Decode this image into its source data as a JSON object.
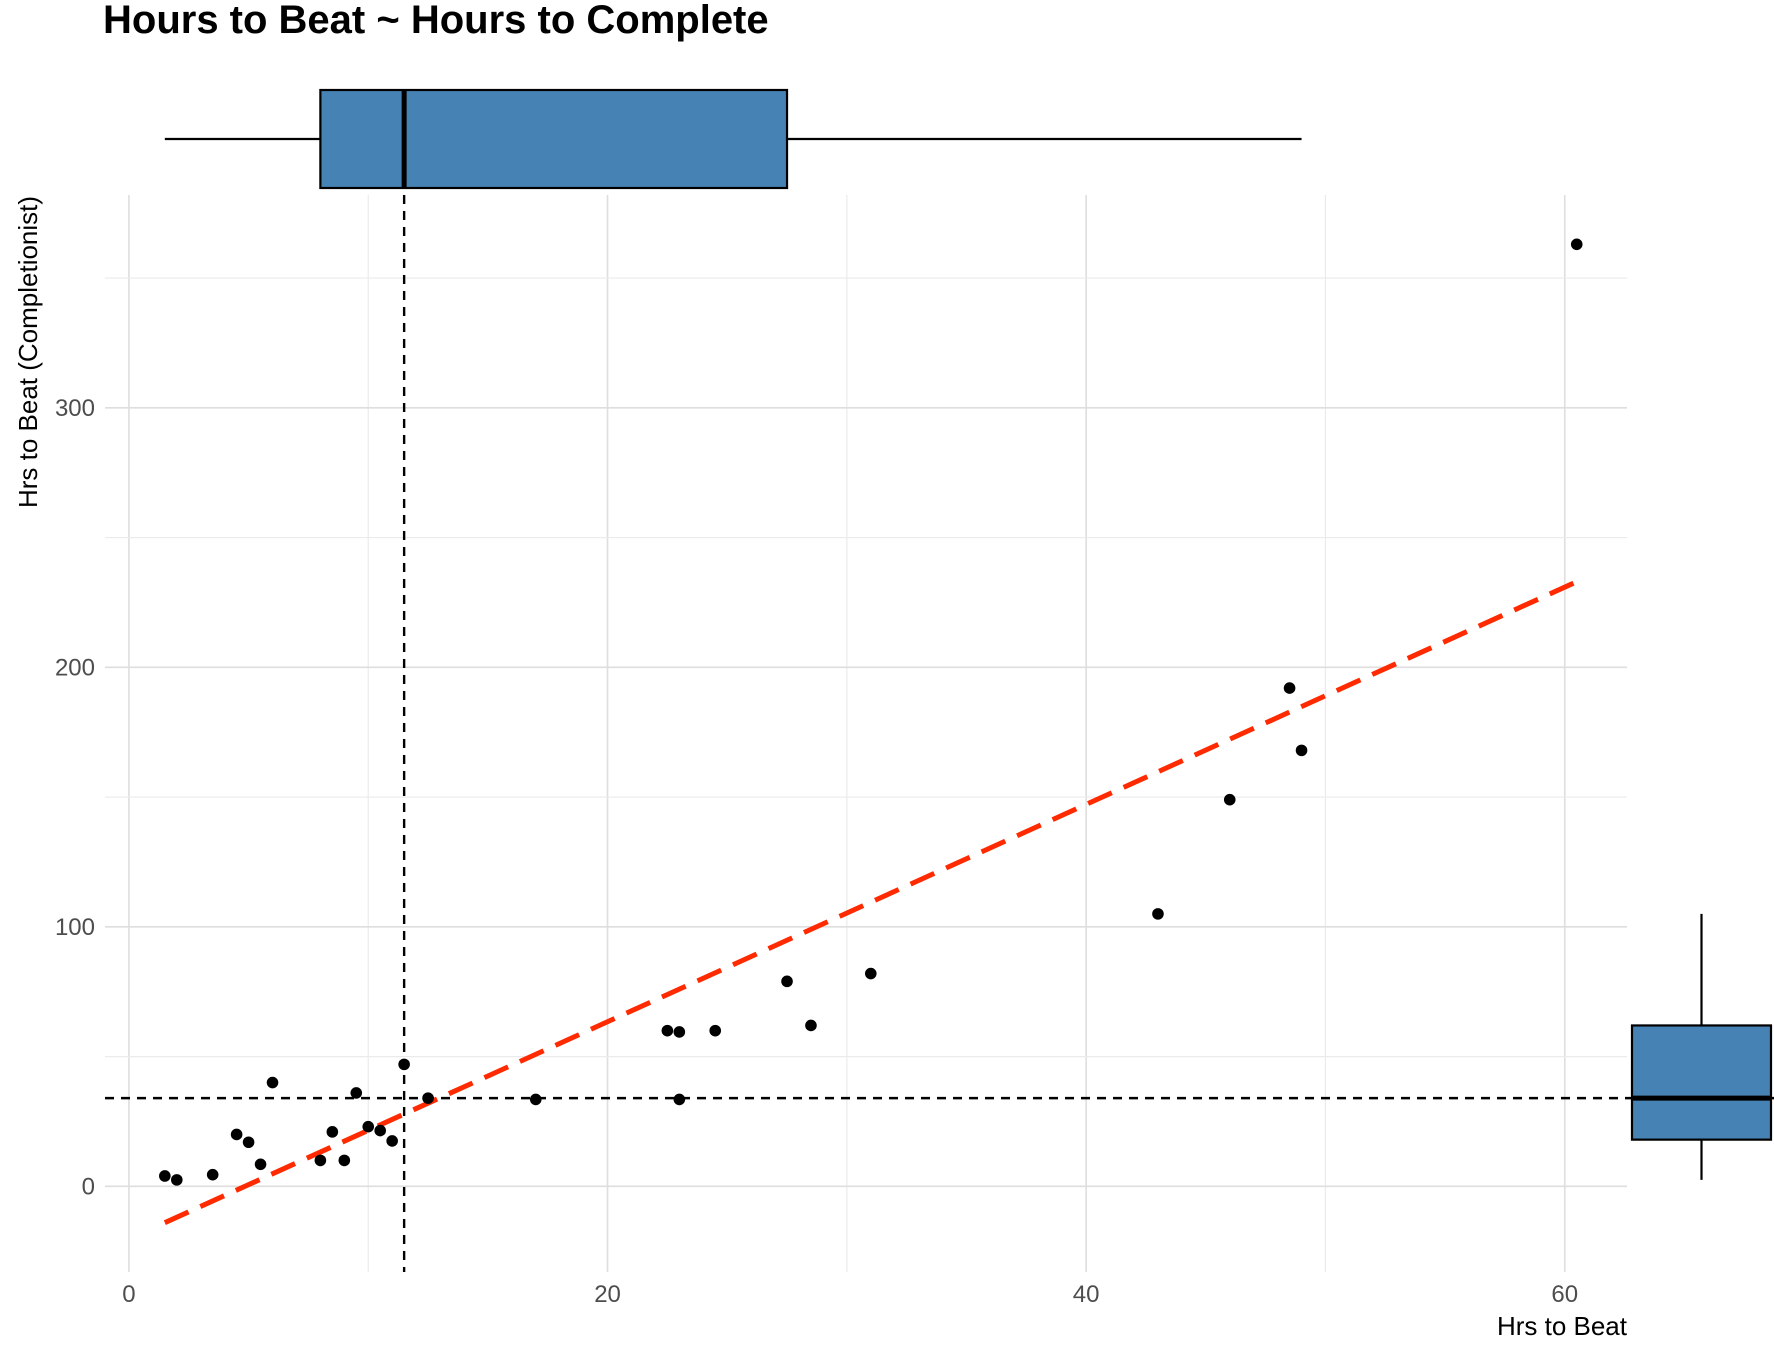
{
  "chart_data": {
    "type": "scatter",
    "title": "Hours to Beat ~ Hours to Complete",
    "xlabel": "Hrs to Beat",
    "ylabel": "Hrs to Beat (Completionist)",
    "xlim": [
      -1,
      62.6
    ],
    "ylim": [
      -33,
      382
    ],
    "x_ticks": [
      0,
      20,
      40,
      60
    ],
    "y_ticks": [
      0,
      100,
      200,
      300
    ],
    "x_tick_labels": [
      "0",
      "20",
      "40",
      "60"
    ],
    "y_tick_labels": [
      "0",
      "100",
      "200",
      "300"
    ],
    "grid": true,
    "points": [
      {
        "x": 1.5,
        "y": 4
      },
      {
        "x": 2.0,
        "y": 2.5
      },
      {
        "x": 3.5,
        "y": 4.5
      },
      {
        "x": 4.5,
        "y": 20
      },
      {
        "x": 5.0,
        "y": 17
      },
      {
        "x": 5.5,
        "y": 8.5
      },
      {
        "x": 6.0,
        "y": 40
      },
      {
        "x": 8.0,
        "y": 10
      },
      {
        "x": 8.5,
        "y": 21
      },
      {
        "x": 9.0,
        "y": 10
      },
      {
        "x": 9.5,
        "y": 36
      },
      {
        "x": 10.0,
        "y": 23
      },
      {
        "x": 10.5,
        "y": 21.5
      },
      {
        "x": 11.0,
        "y": 17.5
      },
      {
        "x": 11.5,
        "y": 47
      },
      {
        "x": 12.5,
        "y": 34
      },
      {
        "x": 17.0,
        "y": 33.5
      },
      {
        "x": 22.5,
        "y": 60
      },
      {
        "x": 23.0,
        "y": 59.5
      },
      {
        "x": 23.0,
        "y": 33.5
      },
      {
        "x": 24.5,
        "y": 60
      },
      {
        "x": 27.5,
        "y": 79
      },
      {
        "x": 28.5,
        "y": 62
      },
      {
        "x": 31.0,
        "y": 82
      },
      {
        "x": 43.0,
        "y": 105
      },
      {
        "x": 46.0,
        "y": 149
      },
      {
        "x": 48.5,
        "y": 192
      },
      {
        "x": 49.0,
        "y": 168
      },
      {
        "x": 60.5,
        "y": 363
      }
    ],
    "trend_line": {
      "x": [
        1.5,
        60.5
      ],
      "y": [
        -14,
        233
      ],
      "color": "#ff2a00",
      "style": "dashed"
    },
    "reference_lines": {
      "x_median": 11.5,
      "y_median": 34
    },
    "marginal_boxplot_x": {
      "whisker_low": 1.5,
      "q1": 8.0,
      "median": 11.5,
      "q3": 27.5,
      "whisker_high": 49.0
    },
    "marginal_boxplot_y": {
      "whisker_low": 2.5,
      "q1": 18,
      "median": 34,
      "q3": 62,
      "whisker_high": 105
    },
    "colors": {
      "box_fill": "#4682b4",
      "points": "#000000",
      "trend": "#ff2a00",
      "reference": "#000000"
    }
  }
}
